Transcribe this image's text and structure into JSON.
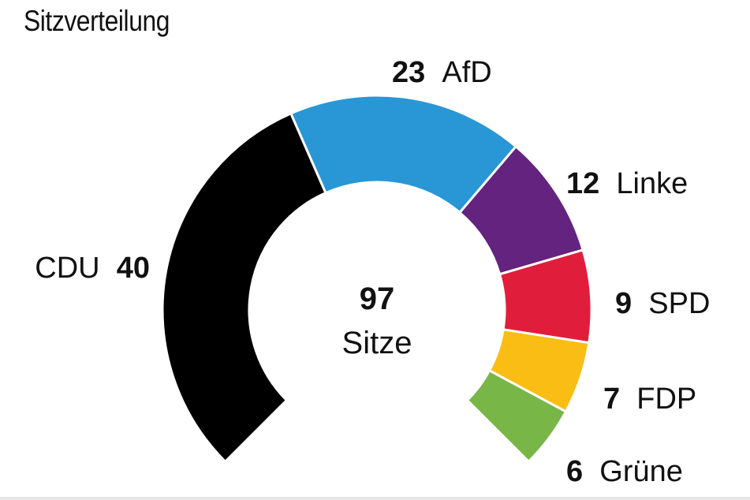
{
  "title": "Sitzverteilung",
  "chart_data": {
    "type": "pie",
    "subtype": "parliament-arc",
    "total": {
      "value": "97",
      "label": "Sitze"
    },
    "series": [
      {
        "name": "CDU",
        "value": 40,
        "color": "#000000"
      },
      {
        "name": "AfD",
        "value": 23,
        "color": "#2996d6"
      },
      {
        "name": "Linke",
        "value": 12,
        "color": "#64237e"
      },
      {
        "name": "SPD",
        "value": 9,
        "color": "#e01e3c"
      },
      {
        "name": "FDP",
        "value": 7,
        "color": "#f9bd14"
      },
      {
        "name": "Grüne",
        "value": 6,
        "color": "#78b648"
      }
    ]
  }
}
